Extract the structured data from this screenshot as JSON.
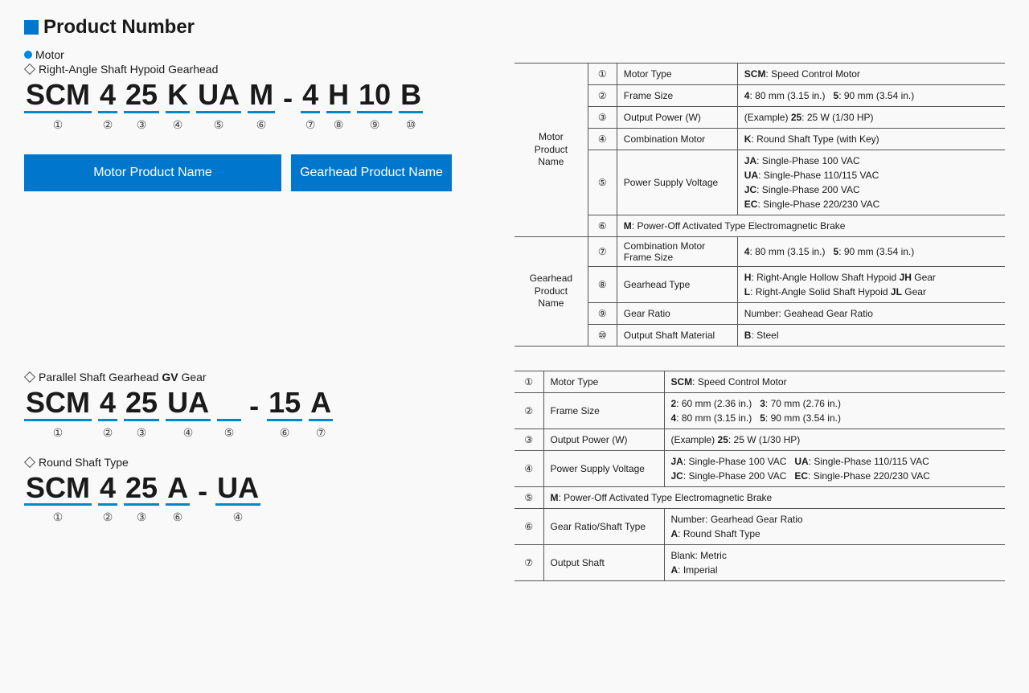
{
  "title": "Product Number",
  "motor_label": "Motor",
  "hypoid_label": "Right-Angle Shaft Hypoid Gearhead",
  "code1": {
    "segs": [
      "SCM",
      "4",
      "25",
      "K",
      "UA",
      "M",
      "-",
      "4",
      "H",
      "10",
      "B"
    ],
    "nums": [
      "①",
      "②",
      "③",
      "④",
      "⑤",
      "⑥",
      "",
      "⑦",
      "⑧",
      "⑨",
      "⑩"
    ]
  },
  "box_motor": "Motor Product Name",
  "box_gearhead": "Gearhead Product Name",
  "table1": {
    "group1": "Motor Product Name",
    "group2": "Gearhead Product Name",
    "rows": [
      {
        "n": "①",
        "p": "Motor Type",
        "v": "<b>SCM</b>: Speed Control Motor"
      },
      {
        "n": "②",
        "p": "Frame Size",
        "v": "<b>4</b>: 80 mm (3.15 in.)&nbsp;&nbsp;&nbsp;<b>5</b>: 90 mm (3.54 in.)"
      },
      {
        "n": "③",
        "p": "Output Power (W)",
        "v": "(Example) <b>25</b>: 25 W (1/30 HP)"
      },
      {
        "n": "④",
        "p": "Combination Motor",
        "v": "<b>K</b>: Round Shaft Type (with Key)"
      },
      {
        "n": "⑤",
        "p": "Power Supply Voltage",
        "v": "<b>JA</b>: Single-Phase 100 VAC<br><b>UA</b>: Single-Phase 110/115 VAC<br><b>JC</b>: Single-Phase 200 VAC<br><b>EC</b>: Single-Phase 220/230 VAC"
      },
      {
        "n": "⑥",
        "p": "",
        "v": "<b>M</b>: Power-Off Activated Type Electromagnetic Brake",
        "span": true
      },
      {
        "n": "⑦",
        "p": "Combination Motor Frame Size",
        "v": "<b>4</b>: 80 mm (3.15 in.)&nbsp;&nbsp;&nbsp;<b>5</b>: 90 mm (3.54 in.)"
      },
      {
        "n": "⑧",
        "p": "Gearhead Type",
        "v": "<b>H</b>: Right-Angle Hollow Shaft Hypoid <b>JH</b> Gear<br><b>L</b>: Right-Angle Solid Shaft Hypoid <b>JL</b> Gear"
      },
      {
        "n": "⑨",
        "p": "Gear Ratio",
        "v": "Number: Geahead Gear Ratio"
      },
      {
        "n": "⑩",
        "p": "Output Shaft Material",
        "v": "<b>B</b>: Steel"
      }
    ]
  },
  "parallel_label": "Parallel Shaft Gearhead ",
  "parallel_bold": "GV",
  "parallel_suffix": " Gear",
  "code2": {
    "segs": [
      "SCM",
      "4",
      "25",
      "UA",
      "",
      "-",
      "15",
      "A"
    ],
    "nums": [
      "①",
      "②",
      "③",
      "④",
      "⑤",
      "",
      "⑥",
      "⑦"
    ]
  },
  "round_label": "Round Shaft Type",
  "code3": {
    "segs": [
      "SCM",
      "4",
      "25",
      "A",
      "-",
      "UA"
    ],
    "nums": [
      "①",
      "②",
      "③",
      "⑥",
      "",
      "④"
    ]
  },
  "table2": {
    "rows": [
      {
        "n": "①",
        "p": "Motor Type",
        "v": "<b>SCM</b>: Speed Control Motor"
      },
      {
        "n": "②",
        "p": "Frame Size",
        "v": "<b>2</b>: 60 mm (2.36 in.)&nbsp;&nbsp;&nbsp;<b>3</b>: 70 mm (2.76 in.)<br><b>4</b>: 80 mm (3.15 in.)&nbsp;&nbsp;&nbsp;<b>5</b>: 90 mm (3.54 in.)"
      },
      {
        "n": "③",
        "p": "Output Power (W)",
        "v": "(Example) <b>25</b>: 25 W (1/30 HP)"
      },
      {
        "n": "④",
        "p": "Power Supply Voltage",
        "v": "<b>JA</b>: Single-Phase 100 VAC&nbsp;&nbsp;&nbsp;<b>UA</b>: Single-Phase 110/115 VAC<br><b>JC</b>: Single-Phase 200 VAC&nbsp;&nbsp;&nbsp;<b>EC</b>: Single-Phase 220/230 VAC"
      },
      {
        "n": "⑤",
        "p": "",
        "v": "<b>M</b>: Power-Off Activated Type Electromagnetic Brake",
        "span": true
      },
      {
        "n": "⑥",
        "p": "Gear Ratio/Shaft Type",
        "v": "Number: Gearhead Gear Ratio<br><b>A</b>: Round Shaft Type"
      },
      {
        "n": "⑦",
        "p": "Output Shaft",
        "v": "Blank: Metric<br><b>A</b>: Imperial"
      }
    ]
  }
}
